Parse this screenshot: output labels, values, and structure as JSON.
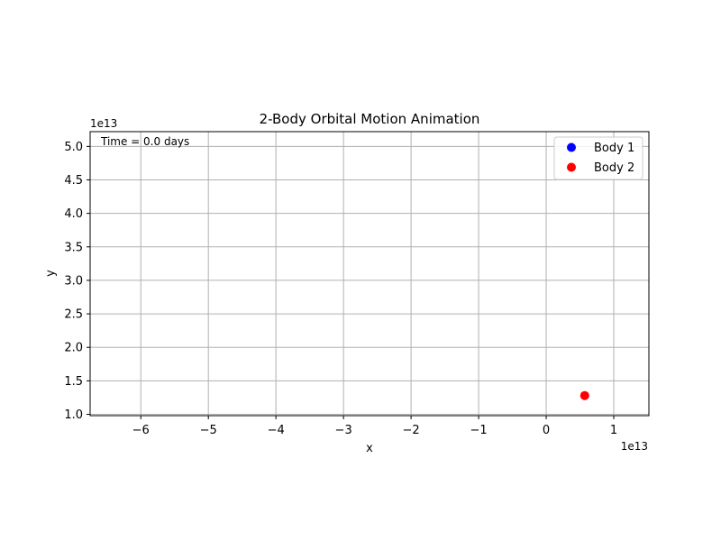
{
  "chart_data": {
    "type": "scatter",
    "title": "2-Body Orbital Motion Animation",
    "xlabel": "x",
    "ylabel": "y",
    "x_offset_label": "1e13",
    "y_offset_label": "1e13",
    "xlim": [
      -6.75,
      1.52
    ],
    "ylim": [
      0.98,
      5.22
    ],
    "x_ticks": [
      -6,
      -5,
      -4,
      -3,
      -2,
      -1,
      0,
      1
    ],
    "x_tick_labels": [
      "−6",
      "−5",
      "−4",
      "−3",
      "−2",
      "−1",
      "0",
      "1"
    ],
    "y_ticks": [
      1.0,
      1.5,
      2.0,
      2.5,
      3.0,
      3.5,
      4.0,
      4.5,
      5.0
    ],
    "y_tick_labels": [
      "1.0",
      "1.5",
      "2.0",
      "2.5",
      "3.0",
      "3.5",
      "4.0",
      "4.5",
      "5.0"
    ],
    "grid": true,
    "legend_position": "top-right",
    "annotation": "Time = 0.0 days",
    "series": [
      {
        "name": "Body 1",
        "color": "#0000ff",
        "points": []
      },
      {
        "name": "Body 2",
        "color": "#ff0000",
        "points": [
          [
            0.57,
            1.28
          ]
        ]
      }
    ]
  }
}
